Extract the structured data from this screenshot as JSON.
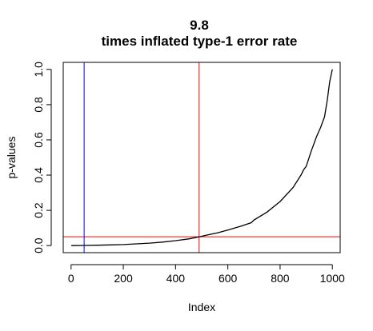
{
  "chart_data": {
    "type": "line",
    "title_line1": "9.8",
    "title_line2": "times inflated type-1 error rate",
    "xlabel": "Index",
    "ylabel": "p-values",
    "xlim": [
      -30,
      1030
    ],
    "ylim": [
      -0.04,
      1.04
    ],
    "x_ticks": [
      0,
      200,
      400,
      600,
      800,
      1000
    ],
    "x_tick_labels": [
      "0",
      "200",
      "400",
      "600",
      "800",
      "1000"
    ],
    "y_ticks": [
      0.0,
      0.2,
      0.4,
      0.6,
      0.8,
      1.0
    ],
    "y_tick_labels": [
      "0.0",
      "0.2",
      "0.4",
      "0.6",
      "0.8",
      "1.0"
    ],
    "grid": false,
    "series": [
      {
        "color": "#000000",
        "x": [
          1,
          50,
          100,
          150,
          200,
          250,
          300,
          350,
          400,
          450,
          490,
          520,
          560,
          600,
          650,
          690,
          700,
          750,
          800,
          850,
          880,
          890,
          900,
          920,
          940,
          955,
          970,
          980,
          990,
          1000
        ],
        "y": [
          0.0,
          0.001,
          0.002,
          0.004,
          0.006,
          0.01,
          0.014,
          0.02,
          0.028,
          0.038,
          0.05,
          0.06,
          0.072,
          0.088,
          0.11,
          0.13,
          0.145,
          0.19,
          0.25,
          0.33,
          0.4,
          0.43,
          0.45,
          0.54,
          0.62,
          0.67,
          0.73,
          0.82,
          0.93,
          1.0
        ]
      }
    ],
    "reference_lines": {
      "horizontal": [
        {
          "y": 0.05,
          "color": "#ff0000"
        }
      ],
      "vertical": [
        {
          "x": 50,
          "color": "#0000ff"
        },
        {
          "x": 490,
          "color": "#ff0000"
        }
      ]
    }
  }
}
